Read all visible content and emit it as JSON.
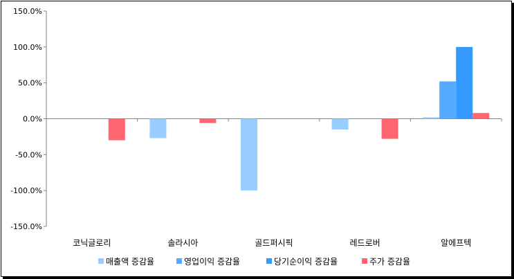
{
  "chart_data": {
    "type": "bar",
    "categories": [
      "코닉글로리",
      "솔라시아",
      "골드퍼시픽",
      "레드로버",
      "알에프텍"
    ],
    "series": [
      {
        "name": "매출액 증감율",
        "color": "#99ccff",
        "values": [
          null,
          -27,
          -100,
          -15,
          2
        ]
      },
      {
        "name": "영업이익 증감율",
        "color": "#55aaff",
        "values": [
          null,
          null,
          null,
          null,
          52
        ]
      },
      {
        "name": "당기순이익 증감율",
        "color": "#3399ff",
        "values": [
          null,
          null,
          null,
          null,
          100
        ]
      },
      {
        "name": "주가 증감율",
        "color": "#ff6670",
        "values": [
          -30,
          -6,
          null,
          -28,
          8
        ]
      }
    ],
    "ylim": [
      -150,
      150
    ],
    "yticks": [
      150,
      100,
      50,
      0,
      -50,
      -100,
      -150
    ],
    "ytick_labels": [
      "150.0%",
      "100.0%",
      "50.0%",
      "0.0%",
      "-50.0%",
      "-100.0%",
      "-150.0%"
    ],
    "legend_position": "bottom",
    "grid": false,
    "title": "",
    "xlabel": "",
    "ylabel": ""
  }
}
